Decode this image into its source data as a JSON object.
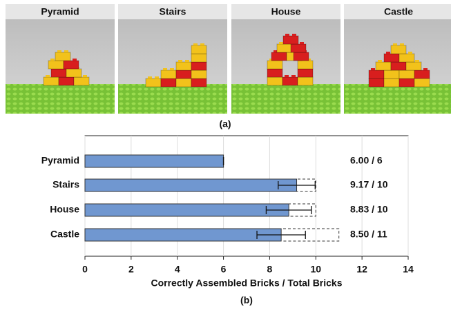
{
  "figure": {
    "panels": [
      "Pyramid",
      "Stairs",
      "House",
      "Castle"
    ],
    "caption": "(a)"
  },
  "chart_data": {
    "type": "hbar",
    "categories": [
      "Pyramid",
      "Stairs",
      "House",
      "Castle"
    ],
    "values": [
      6.0,
      9.17,
      8.83,
      8.5
    ],
    "errors": [
      0,
      0.8,
      0.98,
      1.05
    ],
    "totals": [
      6,
      10,
      10,
      11
    ],
    "value_labels": [
      "6.00 / 6",
      "9.17 / 10",
      "8.83 / 10",
      "8.50 / 11"
    ],
    "color": "#7097d0",
    "xlabel": "Correctly Assembled Bricks / Total Bricks",
    "xlim": [
      0,
      14
    ],
    "xticks": [
      0,
      2,
      4,
      6,
      8,
      10,
      12,
      14
    ],
    "grid": true,
    "caption": "(b)"
  }
}
